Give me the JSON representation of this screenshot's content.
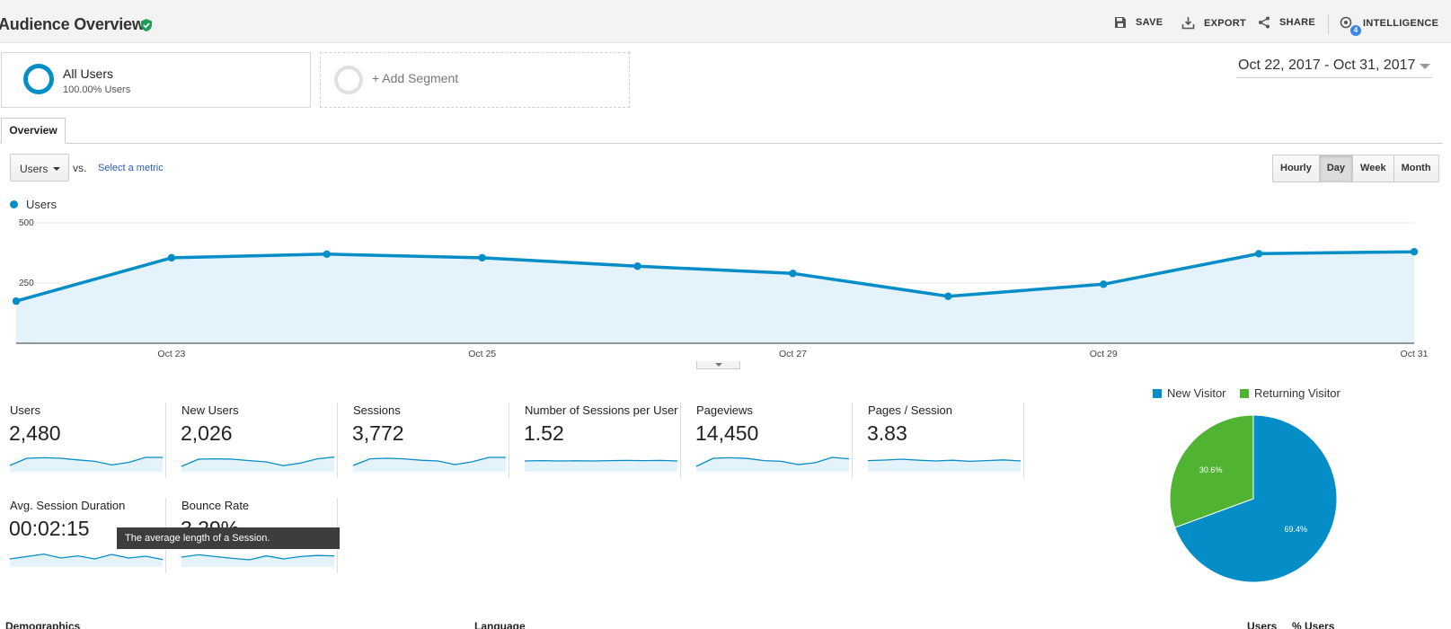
{
  "header": {
    "title": "Audience Overview",
    "save_label": "SAVE",
    "export_label": "EXPORT",
    "share_label": "SHARE",
    "intelligence_label": "INTELLIGENCE",
    "intelligence_badge": "4"
  },
  "segments": {
    "all_users": {
      "name": "All Users",
      "subtitle": "100.00% Users"
    },
    "add_label": "+ Add Segment"
  },
  "date_range": "Oct 22, 2017 - Oct 31, 2017",
  "tabs": [
    {
      "label": "Overview"
    }
  ],
  "controls": {
    "metric": "Users",
    "vs": "vs.",
    "select_metric": "Select a metric",
    "periods": [
      "Hourly",
      "Day",
      "Week",
      "Month"
    ],
    "active_period": "Day"
  },
  "chart_data": {
    "type": "area",
    "series": [
      {
        "name": "Users",
        "color": "#058dc7",
        "values": [
          175,
          355,
          370,
          355,
          320,
          290,
          195,
          245,
          372,
          380
        ]
      }
    ],
    "x": [
      "Oct 22",
      "Oct 23",
      "Oct 24",
      "Oct 25",
      "Oct 26",
      "Oct 27",
      "Oct 28",
      "Oct 29",
      "Oct 30",
      "Oct 31"
    ],
    "x_tick_labels": [
      "Oct 23",
      "Oct 25",
      "Oct 27",
      "Oct 29",
      "Oct 31"
    ],
    "y_ticks": [
      "500",
      "250"
    ],
    "ylim": [
      0,
      500
    ],
    "legend": "Users"
  },
  "metrics": [
    {
      "label": "Users",
      "value": "2,480",
      "spark": [
        0.35,
        0.75,
        0.78,
        0.75,
        0.66,
        0.58,
        0.38,
        0.52,
        0.8,
        0.8
      ]
    },
    {
      "label": "New Users",
      "value": "2,026",
      "spark": [
        0.3,
        0.7,
        0.72,
        0.7,
        0.62,
        0.55,
        0.34,
        0.48,
        0.72,
        0.82
      ]
    },
    {
      "label": "Sessions",
      "value": "3,772",
      "spark": [
        0.35,
        0.72,
        0.75,
        0.72,
        0.64,
        0.6,
        0.4,
        0.55,
        0.8,
        0.8
      ]
    },
    {
      "label": "Number of Sessions per User",
      "value": "1.52",
      "spark": [
        0.6,
        0.62,
        0.6,
        0.61,
        0.6,
        0.62,
        0.63,
        0.62,
        0.63,
        0.6
      ]
    },
    {
      "label": "Pageviews",
      "value": "14,450",
      "spark": [
        0.3,
        0.75,
        0.78,
        0.74,
        0.62,
        0.58,
        0.4,
        0.5,
        0.8,
        0.72
      ]
    },
    {
      "label": "Pages / Session",
      "value": "3.83",
      "spark": [
        0.62,
        0.65,
        0.7,
        0.64,
        0.6,
        0.64,
        0.58,
        0.62,
        0.66,
        0.6
      ]
    },
    {
      "label": "Avg. Session Duration",
      "value": "00:02:15",
      "spark": [
        0.45,
        0.58,
        0.72,
        0.5,
        0.62,
        0.45,
        0.7,
        0.5,
        0.6,
        0.42
      ]
    },
    {
      "label": "Bounce Rate",
      "value": "3.29%",
      "spark": [
        0.55,
        0.68,
        0.58,
        0.48,
        0.4,
        0.62,
        0.45,
        0.58,
        0.64,
        0.62
      ]
    }
  ],
  "tooltip": "The average length of a Session.",
  "pie": {
    "legend": [
      {
        "label": "New Visitor",
        "color": "#058dc7"
      },
      {
        "label": "Returning Visitor",
        "color": "#50b432"
      }
    ],
    "slices": [
      {
        "label": "New Visitor",
        "value": 69.4,
        "text": "69.4%",
        "color": "#058dc7"
      },
      {
        "label": "Returning Visitor",
        "value": 30.6,
        "text": "30.6%",
        "color": "#50b432"
      }
    ]
  },
  "bottom": {
    "demographics": "Demographics",
    "language": "Language",
    "users": "Users",
    "pct_users": "% Users"
  }
}
